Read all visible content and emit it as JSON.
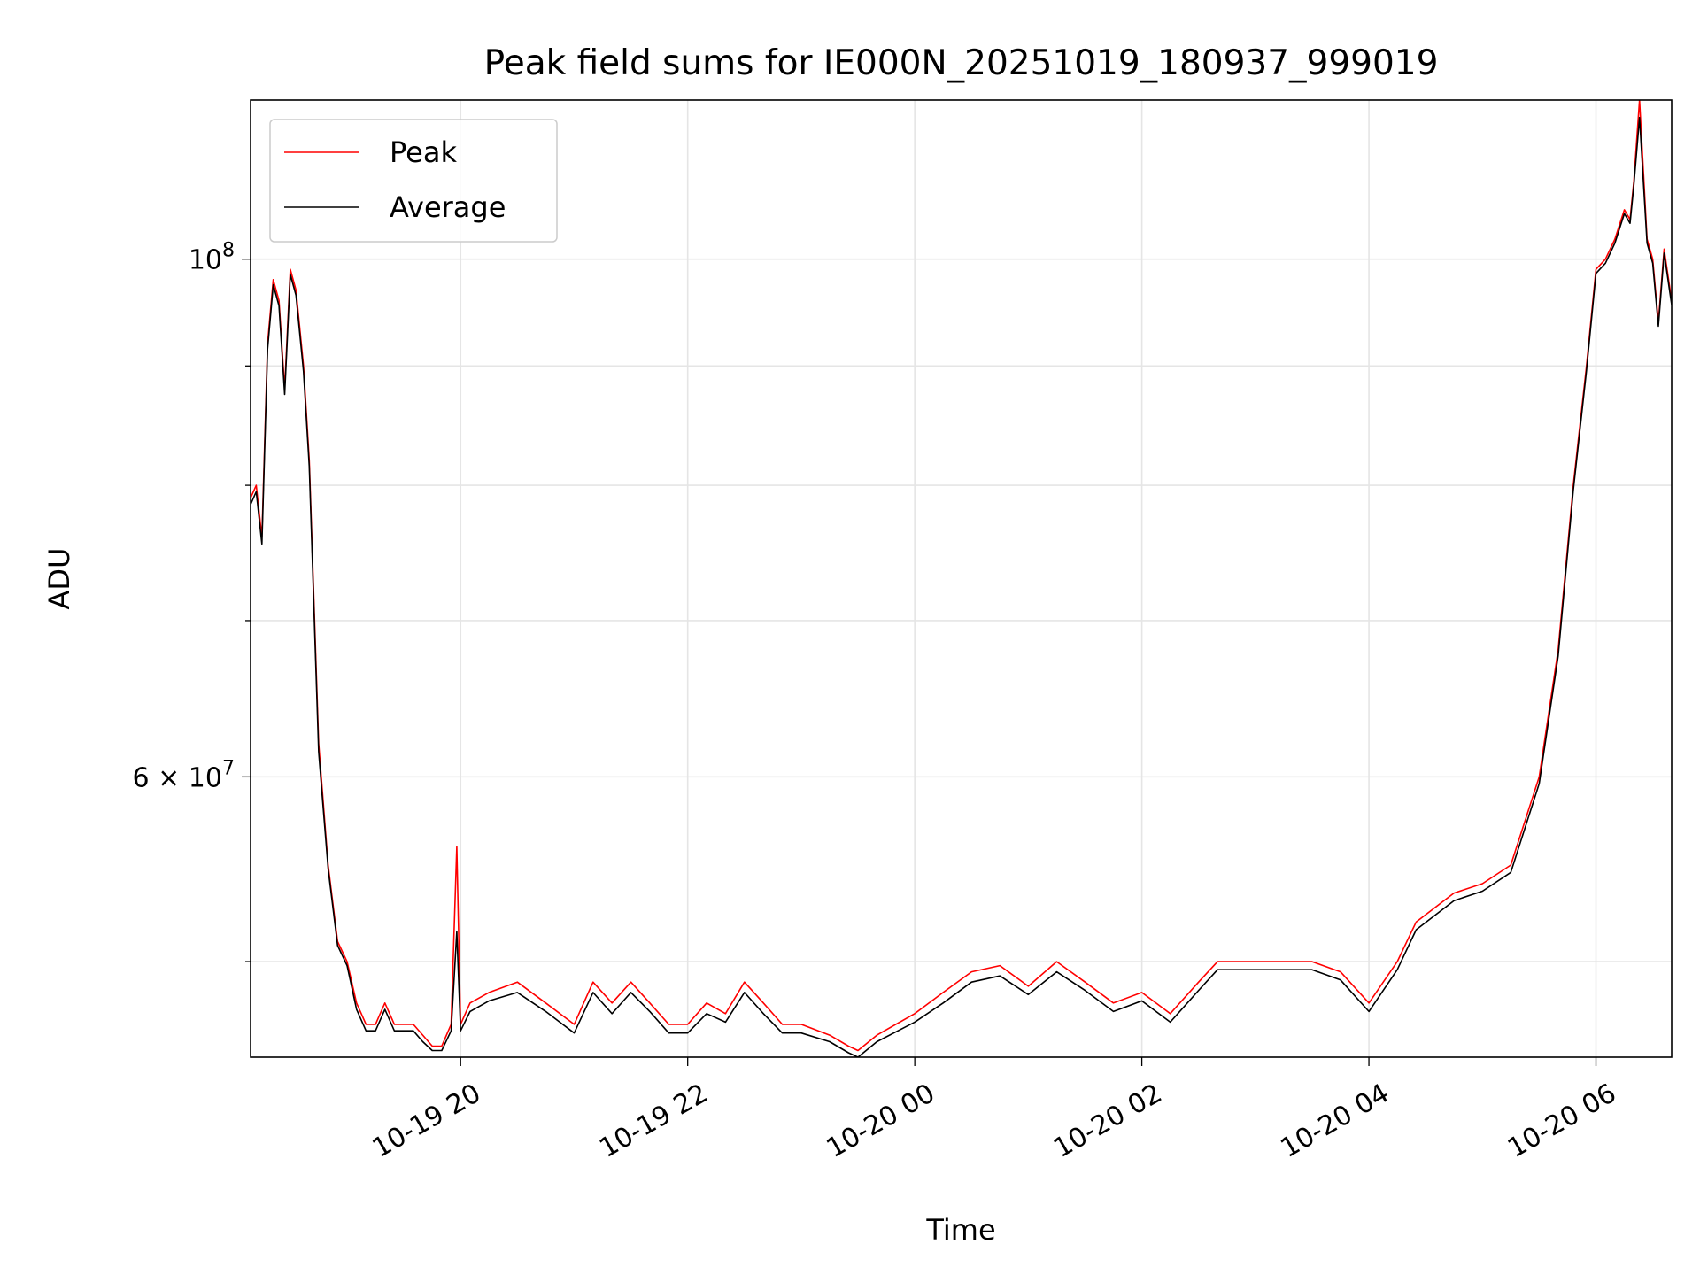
{
  "chart_data": {
    "type": "line",
    "title": "Peak field sums for IE000N_20251019_180937_999019",
    "xlabel": "Time",
    "ylabel": "ADU",
    "x_ticks": [
      "10-19 20",
      "10-19 22",
      "10-20 00",
      "10-20 02",
      "10-20 04",
      "10-20 06"
    ],
    "y_ticks": [
      {
        "value": 100000000,
        "base": "10",
        "exp": "8"
      },
      {
        "value": 60000000,
        "base": "6 × 10",
        "exp": "7"
      }
    ],
    "y_minor_ticks": [
      50000000,
      70000000,
      80000000,
      90000000
    ],
    "xlim": [
      "2025-10-19 18:09",
      "2025-10-20 06:40"
    ],
    "ylim": [
      45500000,
      117000000
    ],
    "y_scale": "log",
    "grid": true,
    "legend_position": "upper left",
    "series": [
      {
        "name": "Peak",
        "color": "#ff0000",
        "x": [
          "2025-10-19 18:09",
          "2025-10-19 18:12",
          "2025-10-19 18:15",
          "2025-10-19 18:18",
          "2025-10-19 18:21",
          "2025-10-19 18:24",
          "2025-10-19 18:27",
          "2025-10-19 18:30",
          "2025-10-19 18:33",
          "2025-10-19 18:37",
          "2025-10-19 18:40",
          "2025-10-19 18:45",
          "2025-10-19 18:50",
          "2025-10-19 18:55",
          "2025-10-19 19:00",
          "2025-10-19 19:05",
          "2025-10-19 19:10",
          "2025-10-19 19:15",
          "2025-10-19 19:20",
          "2025-10-19 19:25",
          "2025-10-19 19:30",
          "2025-10-19 19:35",
          "2025-10-19 19:40",
          "2025-10-19 19:45",
          "2025-10-19 19:50",
          "2025-10-19 19:55",
          "2025-10-19 19:58",
          "2025-10-19 20:00",
          "2025-10-19 20:05",
          "2025-10-19 20:15",
          "2025-10-19 20:30",
          "2025-10-19 20:45",
          "2025-10-19 21:00",
          "2025-10-19 21:10",
          "2025-10-19 21:20",
          "2025-10-19 21:30",
          "2025-10-19 21:40",
          "2025-10-19 21:50",
          "2025-10-19 22:00",
          "2025-10-19 22:10",
          "2025-10-19 22:20",
          "2025-10-19 22:30",
          "2025-10-19 22:40",
          "2025-10-19 22:50",
          "2025-10-19 23:00",
          "2025-10-19 23:15",
          "2025-10-19 23:25",
          "2025-10-19 23:30",
          "2025-10-19 23:40",
          "2025-10-20 00:00",
          "2025-10-20 00:15",
          "2025-10-20 00:30",
          "2025-10-20 00:45",
          "2025-10-20 01:00",
          "2025-10-20 01:15",
          "2025-10-20 01:30",
          "2025-10-20 01:45",
          "2025-10-20 02:00",
          "2025-10-20 02:15",
          "2025-10-20 02:30",
          "2025-10-20 02:40",
          "2025-10-20 03:00",
          "2025-10-20 03:30",
          "2025-10-20 03:45",
          "2025-10-20 04:00",
          "2025-10-20 04:15",
          "2025-10-20 04:25",
          "2025-10-20 04:45",
          "2025-10-20 05:00",
          "2025-10-20 05:15",
          "2025-10-20 05:30",
          "2025-10-20 05:40",
          "2025-10-20 05:48",
          "2025-10-20 05:55",
          "2025-10-20 06:00",
          "2025-10-20 06:05",
          "2025-10-20 06:10",
          "2025-10-20 06:15",
          "2025-10-20 06:18",
          "2025-10-20 06:20",
          "2025-10-20 06:23",
          "2025-10-20 06:27",
          "2025-10-20 06:30",
          "2025-10-20 06:33",
          "2025-10-20 06:36",
          "2025-10-20 06:40"
        ],
        "values": [
          79000000,
          80000000,
          76000000,
          92000000,
          98000000,
          96000000,
          88000000,
          99000000,
          97000000,
          90000000,
          82000000,
          62000000,
          55000000,
          51000000,
          50000000,
          48000000,
          47000000,
          47000000,
          48000000,
          47000000,
          47000000,
          47000000,
          46500000,
          46000000,
          46000000,
          47000000,
          56000000,
          47000000,
          48000000,
          48500000,
          49000000,
          48000000,
          47000000,
          49000000,
          48000000,
          49000000,
          48000000,
          47000000,
          47000000,
          48000000,
          47500000,
          49000000,
          48000000,
          47000000,
          47000000,
          46500000,
          46000000,
          45800000,
          46500000,
          47500000,
          48500000,
          49500000,
          49800000,
          48800000,
          50000000,
          49000000,
          48000000,
          48500000,
          47500000,
          49000000,
          50000000,
          50000000,
          50000000,
          49500000,
          48000000,
          50000000,
          52000000,
          53500000,
          54000000,
          55000000,
          60000000,
          68000000,
          80000000,
          90000000,
          99000000,
          100000000,
          102000000,
          105000000,
          104000000,
          108000000,
          117000000,
          102000000,
          100000000,
          94000000,
          101000000,
          96000000
        ]
      },
      {
        "name": "Average",
        "color": "#000000",
        "x": [
          "2025-10-19 18:09",
          "2025-10-19 18:12",
          "2025-10-19 18:15",
          "2025-10-19 18:18",
          "2025-10-19 18:21",
          "2025-10-19 18:24",
          "2025-10-19 18:27",
          "2025-10-19 18:30",
          "2025-10-19 18:33",
          "2025-10-19 18:37",
          "2025-10-19 18:40",
          "2025-10-19 18:45",
          "2025-10-19 18:50",
          "2025-10-19 18:55",
          "2025-10-19 19:00",
          "2025-10-19 19:05",
          "2025-10-19 19:10",
          "2025-10-19 19:15",
          "2025-10-19 19:20",
          "2025-10-19 19:25",
          "2025-10-19 19:30",
          "2025-10-19 19:35",
          "2025-10-19 19:40",
          "2025-10-19 19:45",
          "2025-10-19 19:50",
          "2025-10-19 19:55",
          "2025-10-19 19:58",
          "2025-10-19 20:00",
          "2025-10-19 20:05",
          "2025-10-19 20:15",
          "2025-10-19 20:30",
          "2025-10-19 20:45",
          "2025-10-19 21:00",
          "2025-10-19 21:10",
          "2025-10-19 21:20",
          "2025-10-19 21:30",
          "2025-10-19 21:40",
          "2025-10-19 21:50",
          "2025-10-19 22:00",
          "2025-10-19 22:10",
          "2025-10-19 22:20",
          "2025-10-19 22:30",
          "2025-10-19 22:40",
          "2025-10-19 22:50",
          "2025-10-19 23:00",
          "2025-10-19 23:15",
          "2025-10-19 23:25",
          "2025-10-19 23:30",
          "2025-10-19 23:40",
          "2025-10-20 00:00",
          "2025-10-20 00:15",
          "2025-10-20 00:30",
          "2025-10-20 00:45",
          "2025-10-20 01:00",
          "2025-10-20 01:15",
          "2025-10-20 01:30",
          "2025-10-20 01:45",
          "2025-10-20 02:00",
          "2025-10-20 02:15",
          "2025-10-20 02:30",
          "2025-10-20 02:40",
          "2025-10-20 03:00",
          "2025-10-20 03:30",
          "2025-10-20 03:45",
          "2025-10-20 04:00",
          "2025-10-20 04:15",
          "2025-10-20 04:25",
          "2025-10-20 04:45",
          "2025-10-20 05:00",
          "2025-10-20 05:15",
          "2025-10-20 05:30",
          "2025-10-20 05:40",
          "2025-10-20 05:48",
          "2025-10-20 05:55",
          "2025-10-20 06:00",
          "2025-10-20 06:05",
          "2025-10-20 06:10",
          "2025-10-20 06:15",
          "2025-10-20 06:18",
          "2025-10-20 06:20",
          "2025-10-20 06:23",
          "2025-10-20 06:27",
          "2025-10-20 06:30",
          "2025-10-20 06:33",
          "2025-10-20 06:36",
          "2025-10-20 06:40"
        ],
        "values": [
          78500000,
          79500000,
          75500000,
          91500000,
          97500000,
          95500000,
          87500000,
          98500000,
          96500000,
          89500000,
          81500000,
          61500000,
          54800000,
          50800000,
          49800000,
          47700000,
          46700000,
          46700000,
          47700000,
          46700000,
          46700000,
          46700000,
          46200000,
          45800000,
          45800000,
          46700000,
          51500000,
          46700000,
          47600000,
          48100000,
          48500000,
          47600000,
          46600000,
          48500000,
          47500000,
          48500000,
          47600000,
          46600000,
          46600000,
          47500000,
          47100000,
          48500000,
          47500000,
          46600000,
          46600000,
          46200000,
          45700000,
          45500000,
          46200000,
          47100000,
          48000000,
          49000000,
          49300000,
          48400000,
          49500000,
          48600000,
          47600000,
          48100000,
          47100000,
          48600000,
          49600000,
          49600000,
          49600000,
          49100000,
          47600000,
          49600000,
          51600000,
          53100000,
          53600000,
          54600000,
          59600000,
          67600000,
          79600000,
          89600000,
          98600000,
          99600000,
          101600000,
          104600000,
          103600000,
          107600000,
          115000000,
          101600000,
          99600000,
          93600000,
          100600000,
          95600000
        ]
      }
    ]
  }
}
